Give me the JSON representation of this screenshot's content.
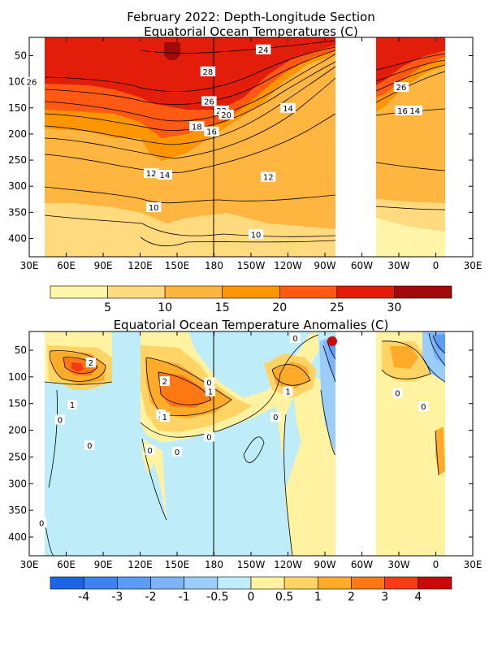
{
  "page": {
    "title_line1": "February 2022: Depth-Longitude Section",
    "title_line2": "Equatorial Ocean Temperatures (C)",
    "title_anomaly": "Equatorial Ocean Temperature Anomalies (C)"
  },
  "axes": {
    "x_ticks": [
      "30E",
      "60E",
      "90E",
      "120E",
      "150E",
      "180",
      "150W",
      "120W",
      "90W",
      "60W",
      "30W",
      "0",
      "30E"
    ],
    "x_range_deg_east": [
      30,
      390
    ],
    "y_ticks": [
      "50",
      "100",
      "150",
      "200",
      "250",
      "300",
      "350",
      "400"
    ],
    "y_range_m": [
      15,
      435
    ]
  },
  "chart_data": [
    {
      "type": "heatmap",
      "title": "Equatorial Ocean Temperatures (C)",
      "units": "C",
      "x_unit": "degrees east longitude",
      "y_unit": "depth (m)",
      "data_gaps_deg_east": [
        [
          30,
          42
        ],
        [
          84,
          106
        ],
        [
          230,
          264
        ],
        [
          356,
          390
        ]
      ],
      "color_bins": [
        {
          "range": [
            0,
            5
          ],
          "color": "#FFF4A8"
        },
        {
          "range": [
            5,
            10
          ],
          "color": "#FFDA7E"
        },
        {
          "range": [
            10,
            15
          ],
          "color": "#FFB640"
        },
        {
          "range": [
            15,
            20
          ],
          "color": "#FF9600"
        },
        {
          "range": [
            20,
            25
          ],
          "color": "#FF5A14"
        },
        {
          "range": [
            25,
            30
          ],
          "color": "#E21E0A"
        },
        {
          "range": [
            30,
            35
          ],
          "color": "#A00A0A"
        }
      ],
      "colorbar_labels": [
        "5",
        "10",
        "15",
        "20",
        "25",
        "30"
      ],
      "contour_labels": [
        {
          "text": "24",
          "lon": 220,
          "depth": 38
        },
        {
          "text": "28",
          "lon": 175,
          "depth": 80
        },
        {
          "text": "26",
          "lon": 32,
          "depth": 100
        },
        {
          "text": "26",
          "lon": 176,
          "depth": 137
        },
        {
          "text": "22",
          "lon": 186,
          "depth": 155
        },
        {
          "text": "20",
          "lon": 190,
          "depth": 163
        },
        {
          "text": "14",
          "lon": 240,
          "depth": 150
        },
        {
          "text": "18",
          "lon": 166,
          "depth": 185
        },
        {
          "text": "16",
          "lon": 178,
          "depth": 195
        },
        {
          "text": "12",
          "lon": 129,
          "depth": 275
        },
        {
          "text": "14",
          "lon": 140,
          "depth": 278
        },
        {
          "text": "12",
          "lon": 224,
          "depth": 282
        },
        {
          "text": "10",
          "lon": 131,
          "depth": 340
        },
        {
          "text": "10",
          "lon": 214,
          "depth": 392
        },
        {
          "text": "26",
          "lon": 332,
          "depth": 110
        },
        {
          "text": "16",
          "lon": 333,
          "depth": 155
        },
        {
          "text": "14",
          "lon": 343,
          "depth": 155
        }
      ]
    },
    {
      "type": "heatmap",
      "title": "Equatorial Ocean Temperature Anomalies (C)",
      "units": "C",
      "x_unit": "degrees east longitude",
      "y_unit": "depth (m)",
      "data_gaps_deg_east": [
        [
          30,
          42
        ],
        [
          84,
          106
        ],
        [
          230,
          264
        ],
        [
          356,
          390
        ]
      ],
      "color_bins": [
        {
          "range": [
            -5,
            -4
          ],
          "color": "#1E64E6"
        },
        {
          "range": [
            -4,
            -3
          ],
          "color": "#3C82F0"
        },
        {
          "range": [
            -3,
            -2
          ],
          "color": "#5A9BF5"
        },
        {
          "range": [
            -2,
            -1
          ],
          "color": "#7DB4F8"
        },
        {
          "range": [
            -1,
            -0.5
          ],
          "color": "#9CCDF8"
        },
        {
          "range": [
            -0.5,
            0
          ],
          "color": "#BEECF8"
        },
        {
          "range": [
            0,
            0.5
          ],
          "color": "#FFF2A0"
        },
        {
          "range": [
            0.5,
            1
          ],
          "color": "#FFD464"
        },
        {
          "range": [
            1,
            2
          ],
          "color": "#FFAA28"
        },
        {
          "range": [
            2,
            3
          ],
          "color": "#FF7814"
        },
        {
          "range": [
            3,
            4
          ],
          "color": "#F53C14"
        },
        {
          "range": [
            4,
            5
          ],
          "color": "#C80A0A"
        }
      ],
      "colorbar_labels": [
        "-4",
        "-3",
        "-2",
        "-1",
        "-0.5",
        "0",
        "0.5",
        "1",
        "2",
        "3",
        "4"
      ],
      "contour_labels": [
        {
          "text": "0",
          "lon": 246,
          "depth": 27
        },
        {
          "text": "2",
          "lon": 80,
          "depth": 73
        },
        {
          "text": "2",
          "lon": 140,
          "depth": 108
        },
        {
          "text": "0",
          "lon": 176,
          "depth": 110
        },
        {
          "text": "1",
          "lon": 177,
          "depth": 127
        },
        {
          "text": "1",
          "lon": 240,
          "depth": 127
        },
        {
          "text": "1",
          "lon": 65,
          "depth": 152
        },
        {
          "text": "2",
          "lon": 137,
          "depth": 170
        },
        {
          "text": "1",
          "lon": 140,
          "depth": 175
        },
        {
          "text": "0",
          "lon": 230,
          "depth": 175
        },
        {
          "text": "0",
          "lon": 55,
          "depth": 180
        },
        {
          "text": "0",
          "lon": 329,
          "depth": 130
        },
        {
          "text": "0",
          "lon": 350,
          "depth": 155
        },
        {
          "text": "0",
          "lon": 176,
          "depth": 212
        },
        {
          "text": "0",
          "lon": 79,
          "depth": 228
        },
        {
          "text": "0",
          "lon": 128,
          "depth": 237
        },
        {
          "text": "0",
          "lon": 150,
          "depth": 240
        },
        {
          "text": "0",
          "lon": 40,
          "depth": 373
        }
      ]
    }
  ]
}
